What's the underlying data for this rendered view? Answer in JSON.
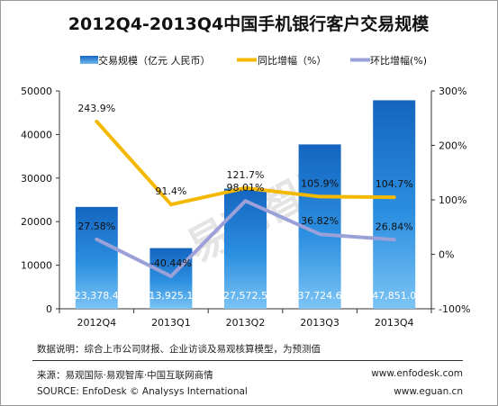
{
  "chart_data": {
    "title": "2012Q4-2013Q4中国手机银行客户交易规模",
    "categories": [
      "2012Q4",
      "2013Q1",
      "2013Q2",
      "2013Q3",
      "2013Q4"
    ],
    "legend": [
      {
        "name": "交易规模（亿元 人民币）",
        "type": "bar",
        "color": "#1e78c8"
      },
      {
        "name": "同比增幅（%）",
        "type": "line",
        "color": "#f5b800"
      },
      {
        "name": "环比增幅(%)",
        "type": "line",
        "color": "#9aa0d8"
      }
    ],
    "bar_series": {
      "values": [
        23378.4,
        13925.1,
        27572.5,
        37724.6,
        47851.0
      ],
      "labels": [
        "23,378.4",
        "13,925.1",
        "27,572.5",
        "37,724.6",
        "47,851.0"
      ]
    },
    "yoy_series": {
      "values": [
        243.9,
        91.4,
        121.7,
        105.9,
        104.7
      ],
      "labels": [
        "243.9%",
        "91.4%",
        "121.7%",
        "105.9%",
        "104.7%"
      ]
    },
    "qoq_series": {
      "values": [
        27.58,
        -40.44,
        98.01,
        36.82,
        26.84
      ],
      "labels": [
        "27.58%",
        "-40.44%",
        "98.01%",
        "36.82%",
        "26.84%"
      ]
    },
    "y_left": {
      "min": 0,
      "max": 50000,
      "ticks": [
        "0",
        "10000",
        "20000",
        "30000",
        "40000",
        "50000"
      ]
    },
    "y_right": {
      "min": -100,
      "max": 300,
      "ticks": [
        "-100%",
        "0%",
        "100%",
        "200%",
        "300%"
      ]
    },
    "watermark": "易观智库"
  },
  "footer": {
    "note": "数据说明：综合上市公司财报、企业访谈及易观核算模型，为预测值",
    "source_cn": "来源：易观国际·易观智库·中国互联网商情",
    "website_1": "www.enfodesk.com",
    "source_en": "SOURCE: EnfoDesk © Analysys International",
    "website_2": "www.eguan.cn"
  }
}
